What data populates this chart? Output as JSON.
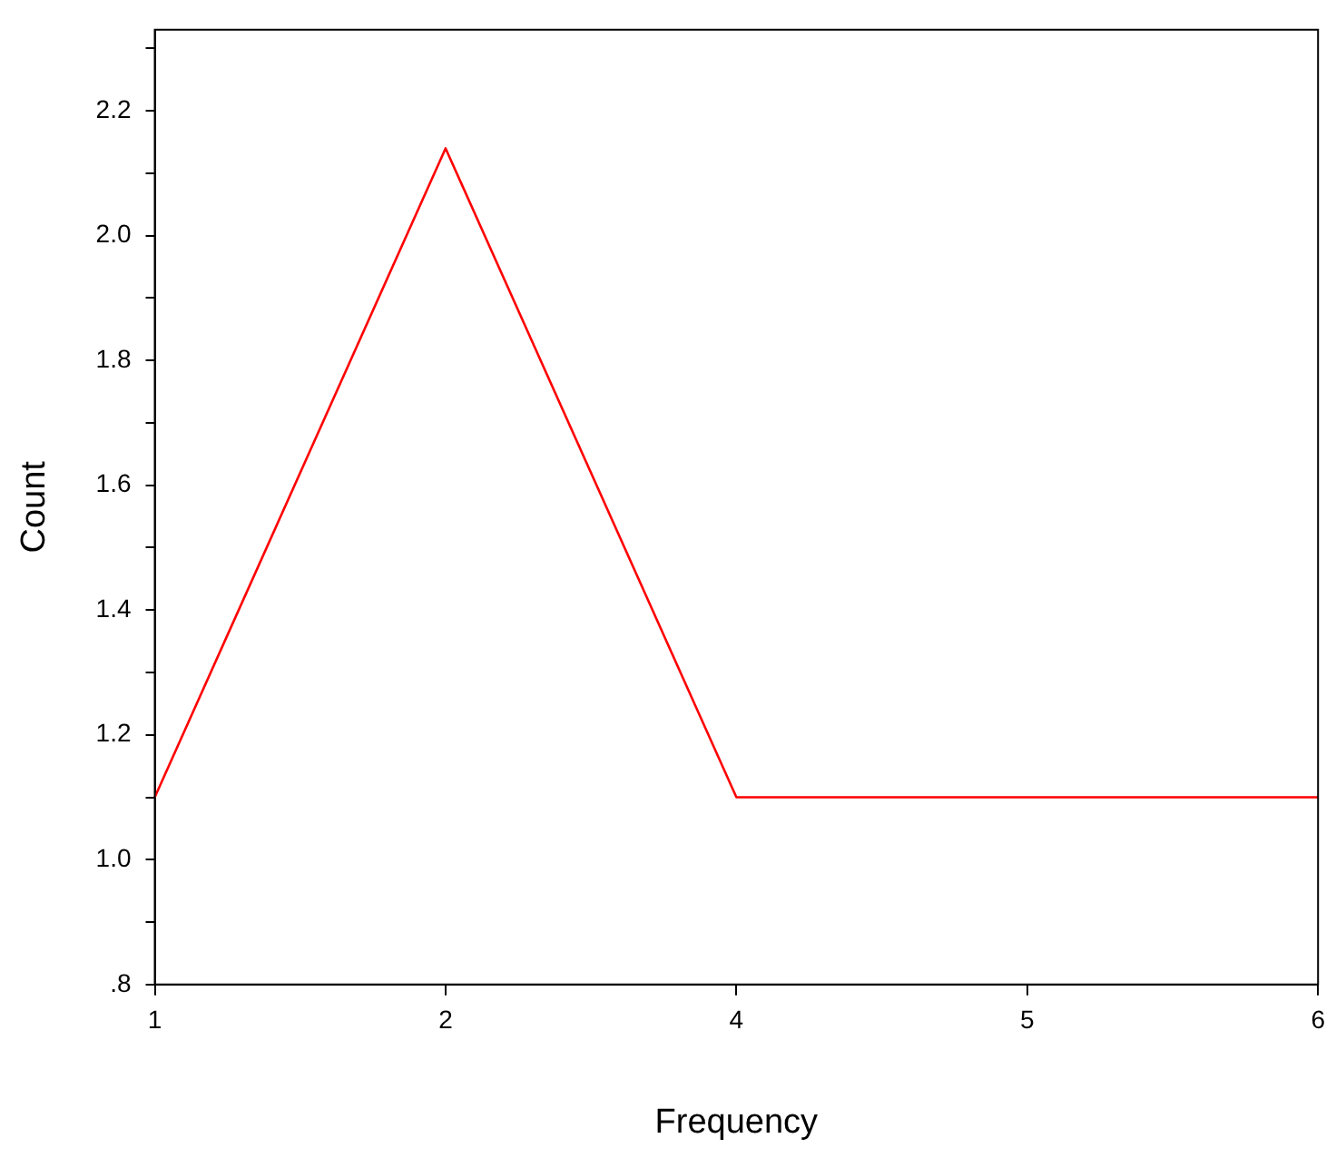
{
  "chart_data": {
    "type": "line",
    "xlabel": "Frequency",
    "ylabel": "Count",
    "categories": [
      "1",
      "2",
      "4",
      "5",
      "6"
    ],
    "series": [
      {
        "color": "#ff0000",
        "values": [
          1.1,
          2.14,
          1.1,
          1.1,
          1.1
        ]
      }
    ],
    "ylim": [
      0.8,
      2.33
    ],
    "yticks": [
      {
        "value": 0.8,
        "label": ".8"
      },
      {
        "value": 0.9,
        "label": null
      },
      {
        "value": 1.0,
        "label": "1.0"
      },
      {
        "value": 1.1,
        "label": null
      },
      1.2,
      {
        "value": 1.3,
        "label": null
      },
      1.4,
      {
        "value": 1.5,
        "label": null
      },
      1.6,
      {
        "value": 1.7,
        "label": null
      },
      1.8,
      {
        "value": 1.9,
        "label": null
      },
      {
        "value": 2.0,
        "label": "2.0"
      },
      {
        "value": 2.1,
        "label": null
      },
      2.2,
      {
        "value": 2.3,
        "label": null
      }
    ],
    "grid": false,
    "legend": false,
    "marker": "none",
    "line_style": "solid"
  }
}
